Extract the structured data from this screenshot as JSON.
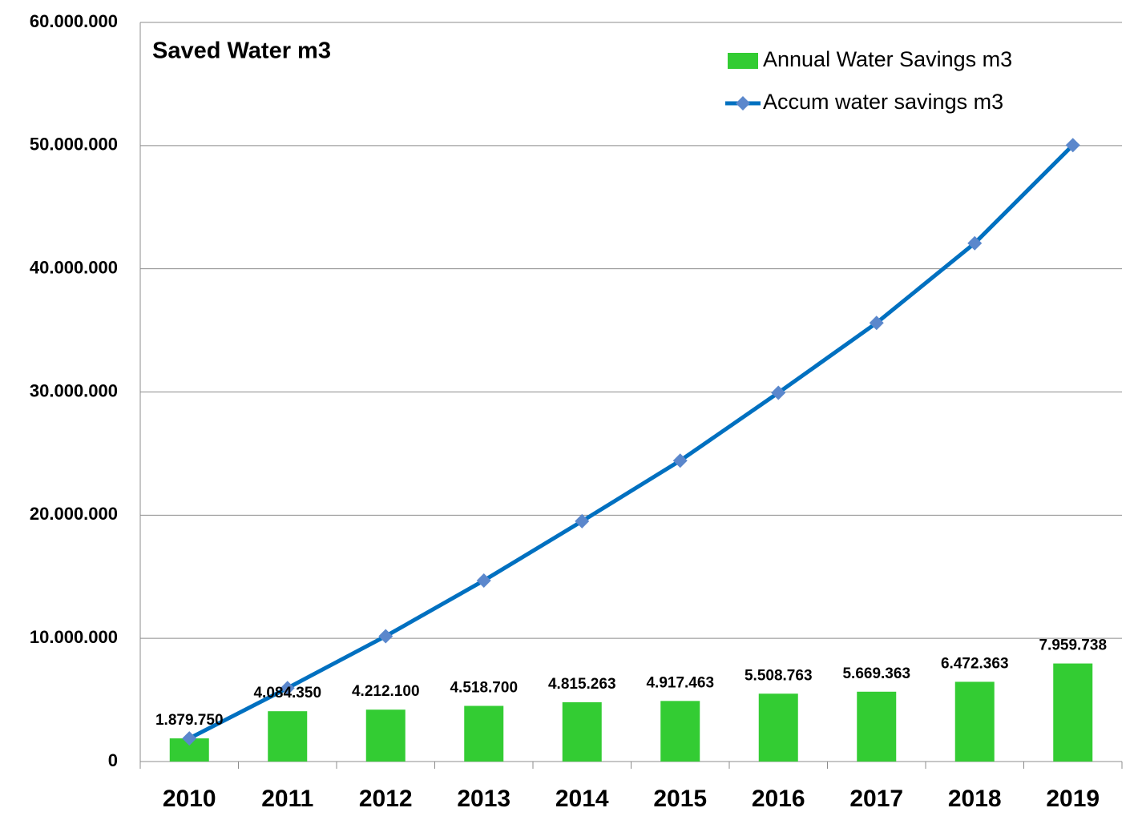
{
  "chart_data": {
    "type": "bar",
    "title": "Saved Water m3",
    "categories": [
      "2010",
      "2011",
      "2012",
      "2013",
      "2014",
      "2015",
      "2016",
      "2017",
      "2018",
      "2019"
    ],
    "series": [
      {
        "name": "Annual Water Savings m3",
        "type": "bar",
        "color": "#33cc33",
        "values": [
          1879750,
          4084350,
          4212100,
          4518700,
          4815263,
          4917463,
          5508763,
          5669363,
          6472363,
          7959738
        ],
        "value_labels": [
          "1.879.750",
          "4.084.350",
          "4.212.100",
          "4.518.700",
          "4.815.263",
          "4.917.463",
          "5.508.763",
          "5.669.363",
          "6.472.363",
          "7.959.738"
        ]
      },
      {
        "name": "Accum water savings m3",
        "type": "line",
        "color": "#0070c0",
        "marker_color": "#5b87cc",
        "values": [
          1879750,
          5964100,
          10176200,
          14694900,
          19510163,
          24427626,
          29936389,
          35605752,
          42078115,
          50037853
        ]
      }
    ],
    "ylim": [
      0,
      60000000
    ],
    "yticks": [
      0,
      {
        "value": 10000000,
        "label": "10.000.000"
      },
      {
        "value": 20000000,
        "label": "20.000.000"
      },
      {
        "value": 30000000,
        "label": "30.000.000"
      },
      {
        "value": 40000000,
        "label": "40.000.000"
      },
      {
        "value": 50000000,
        "label": "50.000.000"
      },
      {
        "value": 60000000,
        "label": "60.000.000"
      }
    ],
    "grid": true,
    "legend": "upper right"
  }
}
